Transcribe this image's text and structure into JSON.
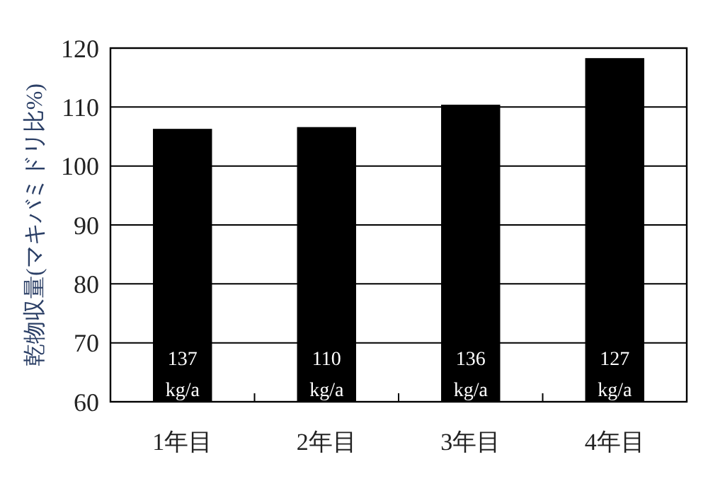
{
  "chart_data": {
    "type": "bar",
    "ylabel": "乾物収量(マキバミドリ比%)",
    "categories": [
      "1年目",
      "2年目",
      "3年目",
      "4年目"
    ],
    "values": [
      106.3,
      106.6,
      110.4,
      118.3
    ],
    "color": "#000000",
    "annotations": [
      "137\nkg/a",
      "110\nkg/a",
      "136\nkg/a",
      "127\nkg/a"
    ],
    "ylim": [
      60,
      120
    ],
    "yticks": [
      60,
      70,
      80,
      90,
      100,
      110,
      120
    ],
    "grid": "y"
  }
}
